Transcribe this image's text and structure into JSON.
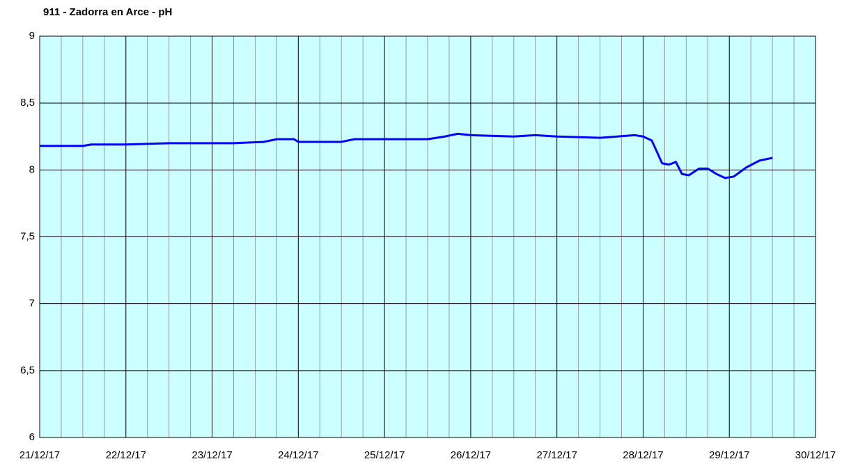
{
  "chart_data": {
    "type": "line",
    "title": "911 - Zadorra en Arce - pH",
    "x": [
      0,
      0.5,
      0.6,
      1,
      1.5,
      2,
      2.25,
      2.6,
      2.75,
      2.95,
      3.0,
      3.5,
      3.65,
      3.8,
      4.5,
      4.7,
      4.85,
      5,
      5.5,
      5.75,
      6,
      6.5,
      6.9,
      7,
      7.1,
      7.15,
      7.22,
      7.3,
      7.38,
      7.45,
      7.53,
      7.65,
      7.75,
      7.85,
      7.95,
      8.05,
      8.2,
      8.35,
      8.5
    ],
    "series": [
      {
        "name": "pH",
        "color": "#0000ff",
        "values": [
          8.18,
          8.18,
          8.19,
          8.19,
          8.2,
          8.2,
          8.2,
          8.21,
          8.23,
          8.23,
          8.21,
          8.21,
          8.23,
          8.23,
          8.23,
          8.25,
          8.27,
          8.26,
          8.25,
          8.26,
          8.25,
          8.24,
          8.26,
          8.25,
          8.22,
          8.15,
          8.05,
          8.04,
          8.06,
          7.97,
          7.96,
          8.01,
          8.01,
          7.97,
          7.94,
          7.95,
          8.02,
          8.07,
          8.09
        ]
      }
    ],
    "xlim": [
      0,
      9
    ],
    "xticks": [
      {
        "value": 0,
        "label": "21/12/17"
      },
      {
        "value": 1,
        "label": "22/12/17"
      },
      {
        "value": 2,
        "label": "23/12/17"
      },
      {
        "value": 3,
        "label": "24/12/17"
      },
      {
        "value": 4,
        "label": "25/12/17"
      },
      {
        "value": 5,
        "label": "26/12/17"
      },
      {
        "value": 6,
        "label": "27/12/17"
      },
      {
        "value": 7,
        "label": "28/12/17"
      },
      {
        "value": 8,
        "label": "29/12/17"
      },
      {
        "value": 9,
        "label": "30/12/17"
      }
    ],
    "xminorticks": [
      0.25,
      0.5,
      0.75,
      1.25,
      1.5,
      1.75,
      2.25,
      2.5,
      2.75,
      3.25,
      3.5,
      3.75,
      4.25,
      4.5,
      4.75,
      5.25,
      5.5,
      5.75,
      6.25,
      6.5,
      6.75,
      7.25,
      7.5,
      7.75,
      8.25,
      8.5,
      8.75
    ],
    "ylim": [
      6,
      9
    ],
    "yticks": [
      6,
      {
        "value": 6.5,
        "label": "6,5"
      },
      7,
      {
        "value": 7.5,
        "label": "7,5"
      },
      8,
      {
        "value": 8.5,
        "label": "8,5"
      },
      9
    ],
    "grid": true,
    "background": "#ccffff"
  }
}
